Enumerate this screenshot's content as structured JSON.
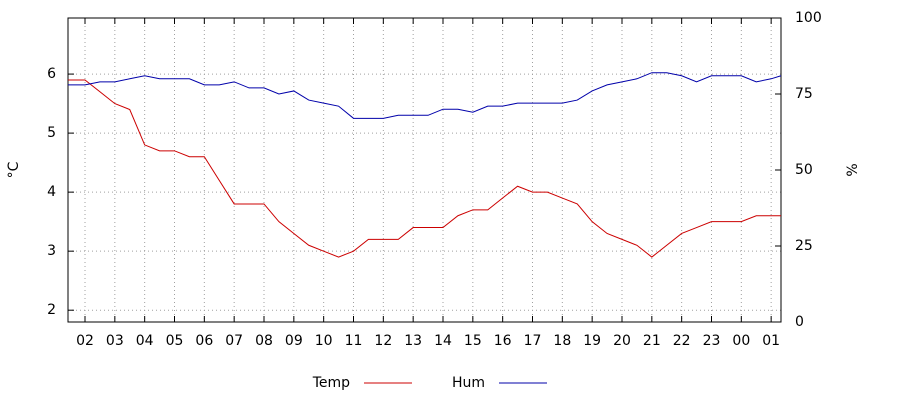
{
  "chart_data": {
    "type": "line",
    "y_label": "°C",
    "y2_label": "%",
    "x": [
      1.43,
      2,
      2.5,
      3,
      3.5,
      4,
      4.5,
      5,
      5.5,
      6,
      6.5,
      7,
      7.5,
      8,
      8.5,
      9,
      9.5,
      10,
      10.5,
      11,
      11.5,
      12,
      12.5,
      13,
      13.5,
      14,
      14.5,
      15,
      15.5,
      16,
      16.5,
      17,
      17.5,
      18,
      18.5,
      19,
      19.5,
      20,
      20.5,
      21,
      21.5,
      22,
      22.5,
      23,
      23.5,
      24,
      24.5,
      25,
      25.33
    ],
    "series": [
      {
        "name": "Temp",
        "color": "#cc0000",
        "axis": "y",
        "values": [
          5.9,
          5.9,
          5.7,
          5.5,
          5.4,
          4.8,
          4.7,
          4.7,
          4.6,
          4.6,
          4.2,
          3.8,
          3.8,
          3.8,
          3.5,
          3.3,
          3.1,
          3.0,
          2.9,
          3.0,
          3.2,
          3.2,
          3.2,
          3.4,
          3.4,
          3.4,
          3.6,
          3.7,
          3.7,
          3.9,
          4.1,
          4.0,
          4.0,
          3.9,
          3.8,
          3.5,
          3.3,
          3.2,
          3.1,
          2.9,
          3.1,
          3.3,
          3.4,
          3.5,
          3.5,
          3.5,
          3.6,
          3.6,
          3.6
        ]
      },
      {
        "name": "Hum",
        "color": "#0000aa",
        "axis": "y2",
        "values": [
          78,
          78,
          79,
          79,
          80,
          81,
          80,
          80,
          80,
          78,
          78,
          79,
          77,
          77,
          75,
          76,
          73,
          72,
          71,
          67,
          67,
          67,
          68,
          68,
          68,
          70,
          70,
          69,
          71,
          71,
          72,
          72,
          72,
          72,
          73,
          76,
          78,
          79,
          80,
          82,
          82,
          81,
          79,
          81,
          81,
          81,
          79,
          80,
          81
        ]
      }
    ],
    "xlim": [
      1.43,
      25.33
    ],
    "xticks": [
      {
        "value": 2,
        "label": "02"
      },
      {
        "value": 3,
        "label": "03"
      },
      {
        "value": 4,
        "label": "04"
      },
      {
        "value": 5,
        "label": "05"
      },
      {
        "value": 6,
        "label": "06"
      },
      {
        "value": 7,
        "label": "07"
      },
      {
        "value": 8,
        "label": "08"
      },
      {
        "value": 9,
        "label": "09"
      },
      10,
      11,
      12,
      13,
      14,
      15,
      16,
      17,
      18,
      19,
      20,
      21,
      22,
      23,
      {
        "value": 24,
        "label": "00"
      },
      {
        "value": 25,
        "label": "01"
      }
    ],
    "ylim": [
      1.8,
      6.95
    ],
    "yticks": [
      2,
      3,
      4,
      5,
      6
    ],
    "y2lim": [
      0,
      100
    ],
    "y2ticks": [
      0,
      25,
      50,
      75,
      100
    ],
    "grid": true,
    "legend": "bottom"
  }
}
